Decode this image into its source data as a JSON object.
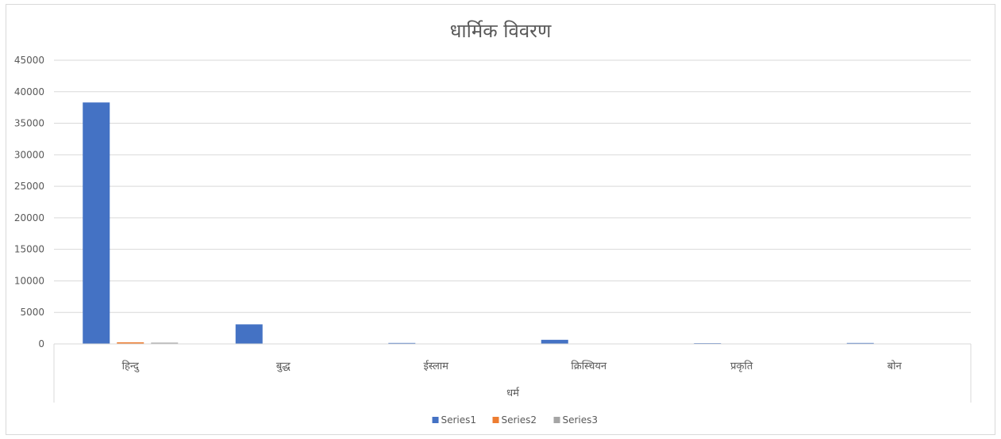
{
  "chart_data": {
    "type": "bar",
    "title": "धार्मिक विवरण",
    "xlabel": "धर्म",
    "ylabel": "",
    "ylim": [
      0,
      45000
    ],
    "yticks": [
      0,
      5000,
      10000,
      15000,
      20000,
      25000,
      30000,
      35000,
      40000,
      45000
    ],
    "categories": [
      "हिन्दु",
      "बुद्ध",
      "ईस्लाम",
      "क्रिस्चियन",
      "प्रकृति",
      "बोन"
    ],
    "series": [
      {
        "name": "Series1",
        "color": "#4472c4",
        "values": [
          38300,
          3100,
          150,
          650,
          120,
          150
        ]
      },
      {
        "name": "Series2",
        "color": "#ed7d31",
        "values": [
          250,
          10,
          0,
          5,
          0,
          0
        ]
      },
      {
        "name": "Series3",
        "color": "#a5a5a5",
        "values": [
          200,
          10,
          0,
          5,
          0,
          0
        ]
      }
    ],
    "grid": true,
    "legend": "bottom"
  }
}
